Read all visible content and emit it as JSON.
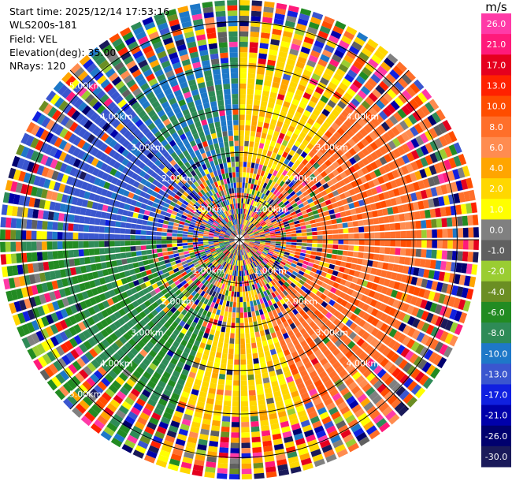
{
  "header": {
    "start_time": "Start time: 2025/12/14 17:53:16",
    "instrument": "WLS200s-181",
    "field": "Field: VEL",
    "elevation": "Elevation(deg): 35.00",
    "nrays": "NRays: 120"
  },
  "chart_data": {
    "type": "heatmap",
    "projection": "polar PPI",
    "field": "VEL",
    "n_rays": 120,
    "range_rings_km": [
      1.0,
      2.0,
      3.0,
      4.0,
      5.0
    ],
    "ring_labels": [
      "1.00km",
      "2.00km",
      "3.00km",
      "4.00km",
      "5.00km"
    ],
    "max_range_km": 5.5,
    "radial_spokes_deg": [
      0,
      45,
      90,
      135,
      180,
      225,
      270,
      315
    ],
    "velocity_sectors": [
      {
        "azimuth_from": 320,
        "azimuth_to": 360,
        "approx_velocity": -8.0
      },
      {
        "azimuth_from": 0,
        "azimuth_to": 40,
        "approx_velocity": 3.0
      },
      {
        "azimuth_from": 40,
        "azimuth_to": 160,
        "approx_velocity": 9.0
      },
      {
        "azimuth_from": 160,
        "azimuth_to": 200,
        "approx_velocity": 3.0
      },
      {
        "azimuth_from": 200,
        "azimuth_to": 270,
        "approx_velocity": -6.0
      },
      {
        "azimuth_from": 270,
        "azimuth_to": 320,
        "approx_velocity": -11.0
      }
    ],
    "colorbar": {
      "unit": "m/s",
      "ticks": [
        "26.0",
        "21.0",
        "17.0",
        "13.0",
        "10.0",
        "8.0",
        "6.0",
        "4.0",
        "2.0",
        "1.0",
        "0.0",
        "-1.0",
        "-2.0",
        "-4.0",
        "-6.0",
        "-8.0",
        "-10.0",
        "-13.0",
        "-17.0",
        "-21.0",
        "-26.0",
        "-30.0"
      ],
      "colors": [
        "#ff3aa7",
        "#ff1a7a",
        "#e5001e",
        "#ff2200",
        "#ff4d00",
        "#ff6f2a",
        "#ff8c50",
        "#ffa500",
        "#ffd700",
        "#ffff00",
        "#808080",
        "#606060",
        "#9acd32",
        "#6b8e23",
        "#228b22",
        "#2e8b57",
        "#1e78c8",
        "#3a56cf",
        "#1020e0",
        "#0000aa",
        "#00006e",
        "#1a1a5a"
      ]
    }
  }
}
